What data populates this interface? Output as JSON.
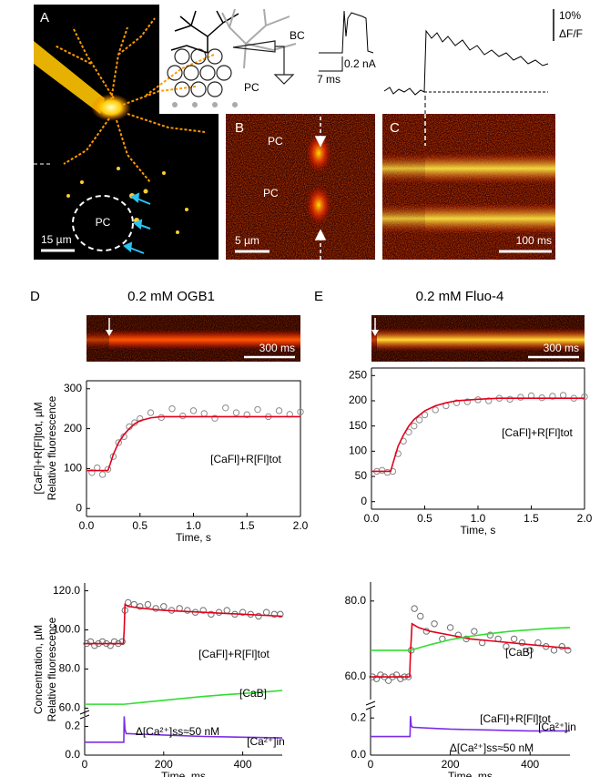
{
  "figure": {
    "panel_a": {
      "label": "A",
      "pc": "PC",
      "scale": "15 µm"
    },
    "diagram": {
      "bc": "BC",
      "pc": "PC"
    },
    "current_scale": {
      "amp": "0.2 nA",
      "time": "7 ms"
    },
    "fluor_scale": {
      "pct": "10%",
      "unit": "ΔF/F"
    },
    "panel_b": {
      "label": "B",
      "pc_top": "PC",
      "pc_bottom": "PC",
      "scale": "5 µm"
    },
    "panel_c": {
      "label": "C",
      "scale": "100 ms"
    },
    "panel_d": {
      "label": "D",
      "title": "0.2 mM OGB1",
      "scale": "300 ms"
    },
    "panel_e": {
      "label": "E",
      "title": "0.2 mM Fluo-4",
      "scale": "300 ms"
    }
  },
  "chart_data": [
    {
      "type": "scatter",
      "frame": "box",
      "xlim": [
        0,
        2
      ],
      "xticks": [
        {
          "value": 0,
          "label": "0.0"
        },
        {
          "value": 0.5,
          "label": "0.5"
        },
        {
          "value": 1,
          "label": "1.0"
        },
        {
          "value": 1.5,
          "label": "1.5"
        },
        {
          "value": 2,
          "label": "2.0"
        }
      ],
      "ylim": [
        -20,
        320
      ],
      "yticks": [
        0,
        100,
        200,
        300
      ],
      "xlabel": "Time, s",
      "ylabel": [
        "[CaFl]+R[Fl]tot, µM",
        "Relative fluorescence"
      ],
      "series": [
        {
          "style": "markers",
          "color": "#8c8c8c",
          "x": [
            0.05,
            0.1,
            0.15,
            0.2,
            0.25,
            0.3,
            0.35,
            0.4,
            0.45,
            0.5,
            0.6,
            0.7,
            0.8,
            0.9,
            1.0,
            1.1,
            1.2,
            1.3,
            1.4,
            1.5,
            1.6,
            1.7,
            1.8,
            1.9,
            2.0
          ],
          "values": [
            90,
            102,
            85,
            98,
            130,
            165,
            180,
            205,
            215,
            225,
            240,
            228,
            250,
            232,
            245,
            238,
            226,
            252,
            240,
            235,
            248,
            230,
            245,
            236,
            242
          ]
        },
        {
          "style": "line",
          "color": "#e3001b",
          "x": [
            0,
            0.2,
            0.22,
            0.25,
            0.3,
            0.35,
            0.4,
            0.45,
            0.5,
            0.6,
            0.7,
            2.0
          ],
          "values": [
            95,
            95,
            110,
            135,
            165,
            185,
            200,
            212,
            220,
            227,
            230,
            230
          ]
        }
      ],
      "annotations": [
        {
          "text": "[CaFl]+R[Fl]tot",
          "color": "#e3001b"
        }
      ]
    },
    {
      "type": "scatter",
      "frame": "box",
      "xlim": [
        0,
        2
      ],
      "xticks": [
        {
          "value": 0,
          "label": "0.0"
        },
        {
          "value": 0.5,
          "label": "0.5"
        },
        {
          "value": 1,
          "label": "1.0"
        },
        {
          "value": 1.5,
          "label": "1.5"
        },
        {
          "value": 2,
          "label": "2.0"
        }
      ],
      "ylim": [
        -15,
        265
      ],
      "yticks": [
        0,
        50,
        100,
        150,
        200,
        250
      ],
      "xlabel": "Time, s",
      "series": [
        {
          "style": "markers",
          "color": "#8c8c8c",
          "x": [
            0.05,
            0.1,
            0.15,
            0.2,
            0.25,
            0.3,
            0.35,
            0.4,
            0.45,
            0.5,
            0.6,
            0.7,
            0.8,
            0.9,
            1.0,
            1.1,
            1.2,
            1.3,
            1.4,
            1.5,
            1.6,
            1.7,
            1.8,
            1.9,
            2.0
          ],
          "values": [
            60,
            62,
            58,
            60,
            95,
            120,
            138,
            150,
            162,
            172,
            182,
            190,
            196,
            198,
            202,
            200,
            205,
            203,
            207,
            210,
            206,
            209,
            211,
            205,
            208
          ]
        },
        {
          "style": "line",
          "color": "#e3001b",
          "x": [
            0,
            0.18,
            0.2,
            0.25,
            0.3,
            0.35,
            0.4,
            0.5,
            0.6,
            0.7,
            0.8,
            1.0,
            1.2,
            1.5,
            2.0
          ],
          "values": [
            60,
            60,
            75,
            110,
            132,
            150,
            163,
            180,
            190,
            196,
            200,
            203,
            205,
            205,
            205
          ]
        }
      ],
      "annotations": [
        {
          "text": "[CaFl]+R[Fl]tot",
          "color": "#e3001b"
        }
      ]
    },
    {
      "type": "scatter",
      "frame": "left",
      "xlim": [
        0,
        500
      ],
      "ylim": [
        56,
        124
      ],
      "yticks": [
        {
          "value": 60,
          "label": "60.0"
        },
        {
          "value": 80,
          "label": "80.0"
        },
        {
          "value": 100,
          "label": "100.0"
        },
        {
          "value": 120,
          "label": "120.0"
        }
      ],
      "ylabel": [
        "Concentration, µM",
        "Relative fluorescence"
      ],
      "series": [
        {
          "style": "markers",
          "color": "#6e6e6e",
          "x": [
            5,
            15,
            25,
            35,
            45,
            55,
            65,
            75,
            85,
            95,
            102,
            110,
            125,
            140,
            160,
            180,
            200,
            220,
            240,
            260,
            280,
            300,
            320,
            340,
            360,
            380,
            400,
            420,
            440,
            460,
            480,
            495
          ],
          "values": [
            93,
            94,
            92,
            93,
            94,
            93,
            92,
            94,
            93,
            94,
            110,
            114,
            113,
            112,
            113,
            111,
            112,
            110,
            111,
            110,
            109,
            110,
            108,
            109,
            110,
            108,
            109,
            108,
            107,
            109,
            108,
            108
          ]
        },
        {
          "style": "line",
          "color": "#e3001b",
          "x": [
            0,
            98,
            100,
            102,
            110,
            150,
            200,
            300,
            400,
            500
          ],
          "values": [
            93,
            93,
            100,
            113,
            112,
            111,
            110,
            109,
            108,
            107
          ]
        },
        {
          "style": "line",
          "color": "#33dd33",
          "x": [
            0,
            100,
            150,
            200,
            250,
            300,
            350,
            400,
            450,
            500
          ],
          "values": [
            62,
            62,
            63,
            64,
            65,
            66,
            66.8,
            67.5,
            68.2,
            69
          ]
        }
      ],
      "annotations": [
        {
          "text": "[CaFl]+R[Fl]tot",
          "color": "#e3001b"
        },
        {
          "text": "[CaB]",
          "color": "#33cc33"
        }
      ]
    },
    {
      "type": "scatter",
      "frame": "left-bottom",
      "xlim": [
        0,
        500
      ],
      "xticks": [
        0,
        200,
        400
      ],
      "ylim": [
        0,
        0.26
      ],
      "yticks": [
        {
          "value": 0,
          "label": "0.0"
        },
        {
          "value": 0.2,
          "label": "0.2"
        }
      ],
      "xlabel": "Time, ms",
      "series": [
        {
          "style": "line",
          "color": "#7a2ee6",
          "x": [
            0,
            99,
            100,
            102,
            105,
            150,
            200,
            300,
            400,
            500
          ],
          "values": [
            0.09,
            0.09,
            0.27,
            0.18,
            0.15,
            0.145,
            0.14,
            0.13,
            0.125,
            0.12
          ]
        }
      ],
      "annotations": [
        {
          "text": "Δ[Ca²⁺]ss≈50 nM",
          "color": "#000000"
        },
        {
          "text": "[Ca²⁺]in",
          "color": "#7a2ee6"
        }
      ]
    },
    {
      "type": "scatter",
      "frame": "left",
      "xlim": [
        0,
        500
      ],
      "ylim": [
        54,
        85
      ],
      "yticks": [
        {
          "value": 60,
          "label": "60.0"
        },
        {
          "value": 80,
          "label": "80.0"
        }
      ],
      "series": [
        {
          "style": "markers",
          "color": "#6e6e6e",
          "x": [
            5,
            15,
            25,
            35,
            45,
            55,
            65,
            75,
            85,
            95,
            102,
            110,
            125,
            140,
            160,
            180,
            200,
            220,
            240,
            260,
            280,
            300,
            320,
            340,
            360,
            380,
            400,
            420,
            440,
            460,
            480,
            495
          ],
          "values": [
            60,
            59.5,
            60.5,
            60,
            59,
            60,
            60.5,
            59.5,
            60,
            60,
            67,
            78,
            76,
            72,
            74,
            70,
            73,
            71,
            70,
            72,
            69,
            71,
            70,
            68,
            70,
            69,
            67,
            69,
            68,
            67,
            68,
            67
          ]
        },
        {
          "style": "line",
          "color": "#e3001b",
          "x": [
            0,
            98,
            100,
            104,
            120,
            150,
            200,
            250,
            300,
            350,
            400,
            450,
            500
          ],
          "values": [
            60,
            60,
            66,
            74,
            73,
            72,
            71,
            70,
            69.5,
            69,
            68.5,
            68,
            67.5
          ]
        },
        {
          "style": "line",
          "color": "#33dd33",
          "x": [
            0,
            100,
            150,
            200,
            250,
            300,
            350,
            400,
            450,
            500
          ],
          "values": [
            67,
            67,
            68.5,
            69.8,
            70.7,
            71.4,
            72,
            72.4,
            72.8,
            73
          ]
        }
      ],
      "annotations": [
        {
          "text": "[CaB]",
          "color": "#33cc33"
        },
        {
          "text": "[CaFl]+R[Fl]tot",
          "color": "#e3001b"
        }
      ]
    },
    {
      "type": "scatter",
      "frame": "left-bottom",
      "xlim": [
        0,
        500
      ],
      "xticks": [
        0,
        200,
        400
      ],
      "ylim": [
        0,
        0.25
      ],
      "yticks": [
        {
          "value": 0,
          "label": "0.0"
        },
        {
          "value": 0.2,
          "label": "0.2"
        }
      ],
      "xlabel": "Time, ms",
      "series": [
        {
          "style": "line",
          "color": "#7a2ee6",
          "x": [
            0,
            99,
            100,
            102,
            105,
            150,
            200,
            300,
            400,
            500
          ],
          "values": [
            0.1,
            0.1,
            0.21,
            0.16,
            0.15,
            0.145,
            0.14,
            0.135,
            0.13,
            0.13
          ]
        }
      ],
      "annotations": [
        {
          "text": "[Ca²⁺]in",
          "color": "#7a2ee6"
        },
        {
          "text": "Δ[Ca²⁺]ss≈50 nM",
          "color": "#000000"
        }
      ]
    }
  ]
}
